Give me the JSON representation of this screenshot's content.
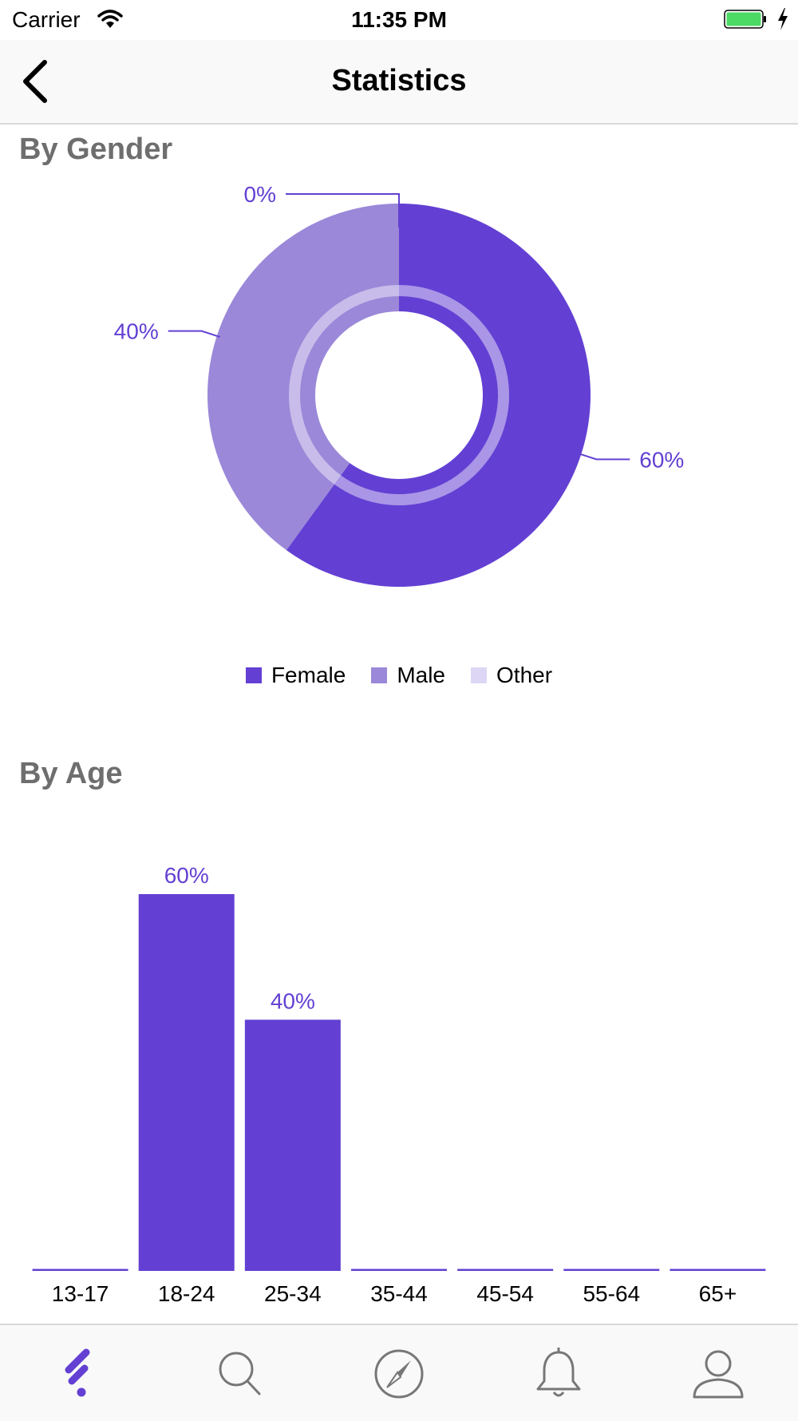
{
  "status_bar": {
    "carrier": "Carrier",
    "time": "11:35 PM"
  },
  "nav": {
    "title": "Statistics"
  },
  "gender": {
    "title": "By Gender",
    "chart_data": {
      "type": "pie",
      "categories": [
        "Female",
        "Male",
        "Other"
      ],
      "values": [
        60,
        40,
        0
      ],
      "labels": [
        "60%",
        "40%",
        "0%"
      ],
      "colors": [
        "#6340d3",
        "#9b88d9",
        "#ddd6f5"
      ]
    }
  },
  "age": {
    "title": "By Age",
    "chart_data": {
      "type": "bar",
      "categories": [
        "13-17",
        "18-24",
        "25-34",
        "35-44",
        "45-54",
        "55-64",
        "65+"
      ],
      "values": [
        0,
        60,
        40,
        0,
        0,
        0,
        0
      ],
      "data_labels": [
        "",
        "60%",
        "40%",
        "",
        "",
        "",
        ""
      ],
      "color": "#6340d3",
      "ylim": [
        0,
        60
      ]
    }
  },
  "tabs": [
    {
      "name": "tab-feed",
      "icon": "feed-icon",
      "active": true
    },
    {
      "name": "tab-search",
      "icon": "search-icon",
      "active": false
    },
    {
      "name": "tab-explore",
      "icon": "compass-icon",
      "active": false
    },
    {
      "name": "tab-notifications",
      "icon": "bell-icon",
      "active": false
    },
    {
      "name": "tab-profile",
      "icon": "person-icon",
      "active": false
    }
  ],
  "colors": {
    "accent": "#6340d3",
    "icon_gray": "#777777",
    "battery": "#4cd964"
  }
}
